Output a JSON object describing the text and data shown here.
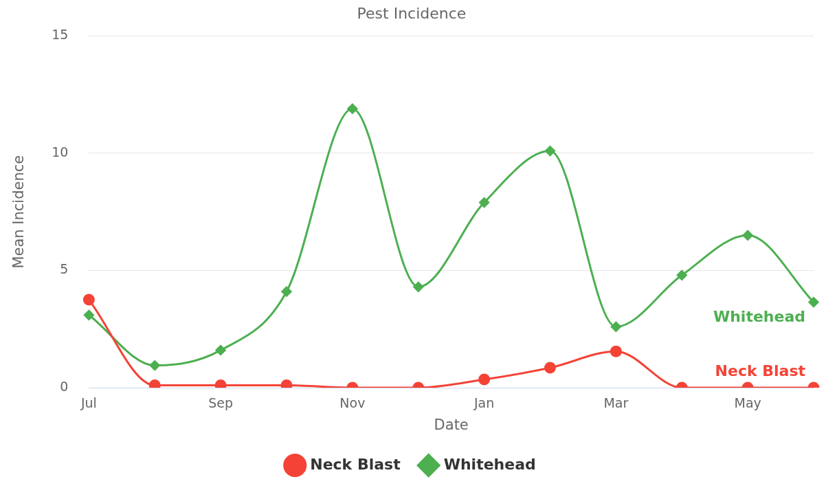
{
  "chart_data": {
    "type": "line",
    "title": "Pest Incidence",
    "xlabel": "Date",
    "ylabel": "Mean Incidence",
    "categories": [
      "Jul",
      null,
      "Sep",
      null,
      "Nov",
      null,
      "Jan",
      null,
      "Mar",
      null,
      "May",
      null
    ],
    "series": [
      {
        "name": "Neck Blast",
        "color": "#f44336",
        "marker": "circle",
        "values": [
          3.75,
          0.1,
          0.1,
          0.1,
          0,
          0,
          0.35,
          0.85,
          1.55,
          0,
          0,
          0
        ]
      },
      {
        "name": "Whitehead",
        "color": "#4caf50",
        "marker": "diamond",
        "values": [
          3.1,
          0.95,
          1.6,
          4.1,
          11.9,
          4.3,
          7.9,
          10.1,
          2.6,
          4.8,
          6.5,
          3.65
        ]
      }
    ],
    "ylim": [
      0,
      15
    ],
    "yticks": [
      0,
      5,
      10,
      15
    ],
    "grid": "y",
    "legend": "bottom"
  }
}
